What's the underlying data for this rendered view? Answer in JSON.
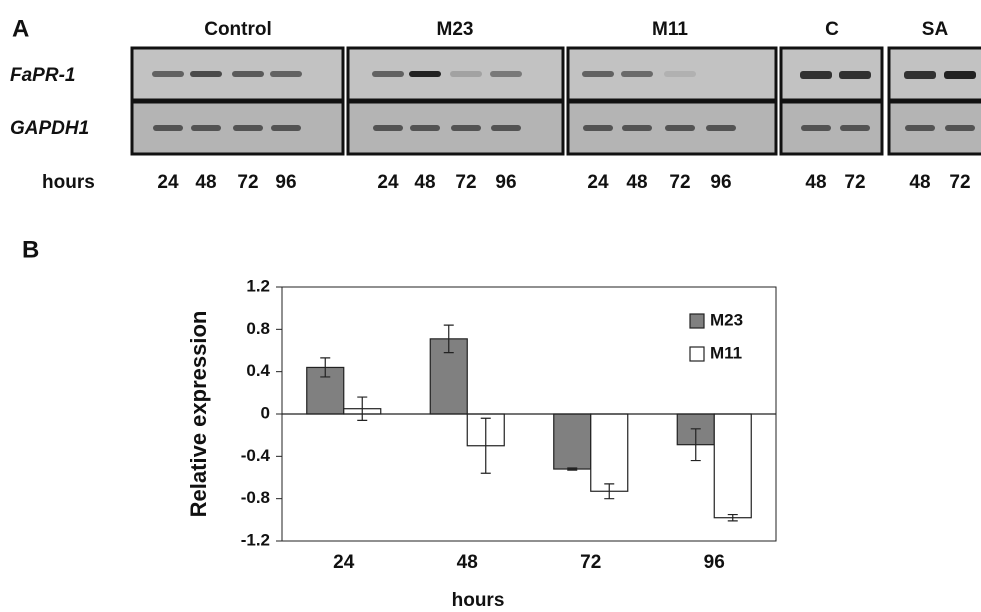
{
  "panel_a": {
    "label": "A",
    "row_labels": [
      "FaPR-1",
      "GAPDH1"
    ],
    "x_label": "hours",
    "groups": [
      {
        "name": "Control",
        "lanes": [
          "24",
          "48",
          "72",
          "96"
        ]
      },
      {
        "name": "M23",
        "lanes": [
          "24",
          "48",
          "72",
          "96"
        ]
      },
      {
        "name": "M11",
        "lanes": [
          "24",
          "48",
          "72",
          "96"
        ]
      },
      {
        "name": "C",
        "lanes": [
          "48",
          "72"
        ]
      },
      {
        "name": "SA",
        "lanes": [
          "48",
          "72"
        ]
      }
    ]
  },
  "chart_data": {
    "type": "bar",
    "panel_label": "B",
    "x_label": "hours",
    "y_label": "Relative expression",
    "categories": [
      "24",
      "48",
      "72",
      "96"
    ],
    "series": [
      {
        "name": "M23",
        "color": "#808080",
        "values": [
          0.44,
          0.71,
          -0.52,
          -0.29
        ],
        "errors": [
          0.09,
          0.13,
          0.01,
          0.15
        ]
      },
      {
        "name": "M11",
        "color": "#ffffff",
        "values": [
          0.05,
          -0.3,
          -0.73,
          -0.98
        ],
        "errors": [
          0.11,
          0.26,
          0.07,
          0.03
        ]
      }
    ],
    "ylim": [
      -1.2,
      1.2
    ],
    "yticks": [
      1.2,
      0.8,
      0.4,
      0,
      -0.4,
      -0.8,
      -1.2
    ],
    "legend": "upper right"
  }
}
